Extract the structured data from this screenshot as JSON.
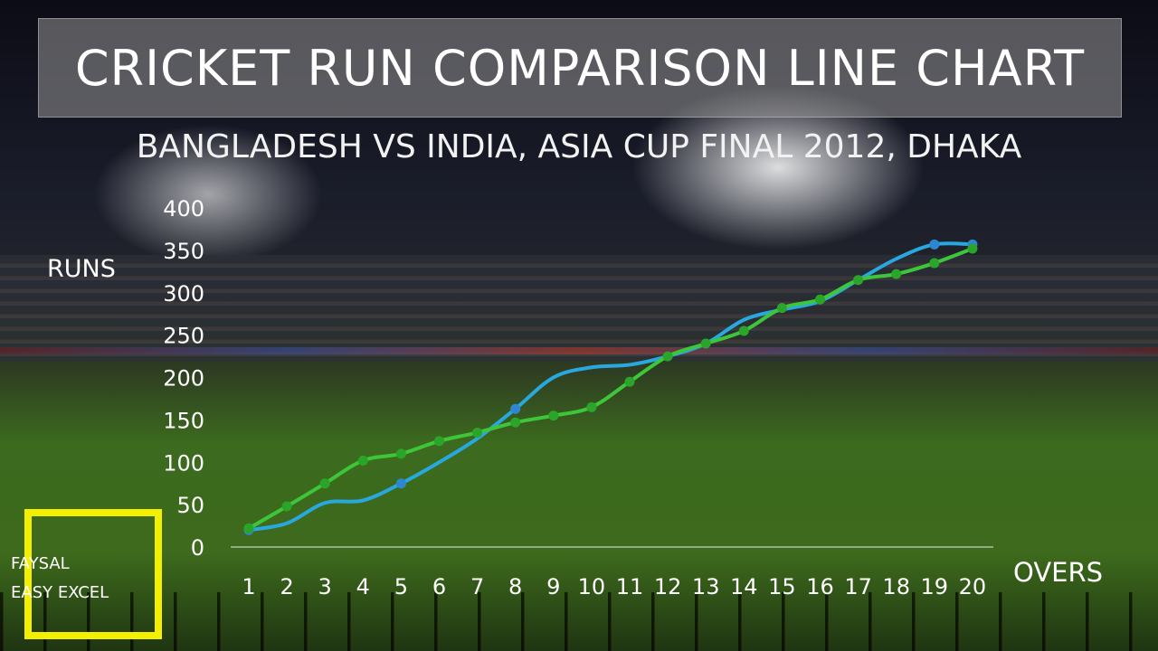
{
  "title": "CRICKET RUN COMPARISON LINE CHART",
  "subtitle": "BANGLADESH VS INDIA, ASIA CUP FINAL 2012, DHAKA",
  "brand": {
    "line1": "FAYSAL",
    "line2": "EASY EXCEL",
    "border_color": "#f4ee00"
  },
  "chart_data": {
    "type": "line",
    "title": "CRICKET RUN COMPARISON LINE CHART",
    "subtitle": "BANGLADESH VS INDIA, ASIA CUP FINAL 2012, DHAKA",
    "xlabel": "OVERS",
    "ylabel": "RUNS",
    "x": [
      1,
      2,
      3,
      4,
      5,
      6,
      7,
      8,
      9,
      10,
      11,
      12,
      13,
      14,
      15,
      16,
      17,
      18,
      19,
      20
    ],
    "ylim": [
      0,
      400
    ],
    "yticks": [
      0,
      50,
      100,
      150,
      200,
      250,
      300,
      350,
      400
    ],
    "grid": false,
    "legend": "none",
    "smooth": true,
    "series": [
      {
        "color": "#29a8e0",
        "marker_color": "#2f86d0",
        "marker_at": [
          1,
          5,
          8,
          19,
          20
        ],
        "values": [
          20,
          28,
          52,
          55,
          75,
          100,
          128,
          163,
          200,
          212,
          215,
          225,
          240,
          268,
          280,
          290,
          315,
          340,
          357,
          357
        ]
      },
      {
        "color": "#3ec63a",
        "marker_color": "#2aa52a",
        "marker_at": "all",
        "values": [
          22,
          48,
          75,
          102,
          110,
          125,
          135,
          147,
          155,
          165,
          195,
          225,
          240,
          255,
          282,
          292,
          315,
          322,
          335,
          352
        ]
      }
    ]
  }
}
